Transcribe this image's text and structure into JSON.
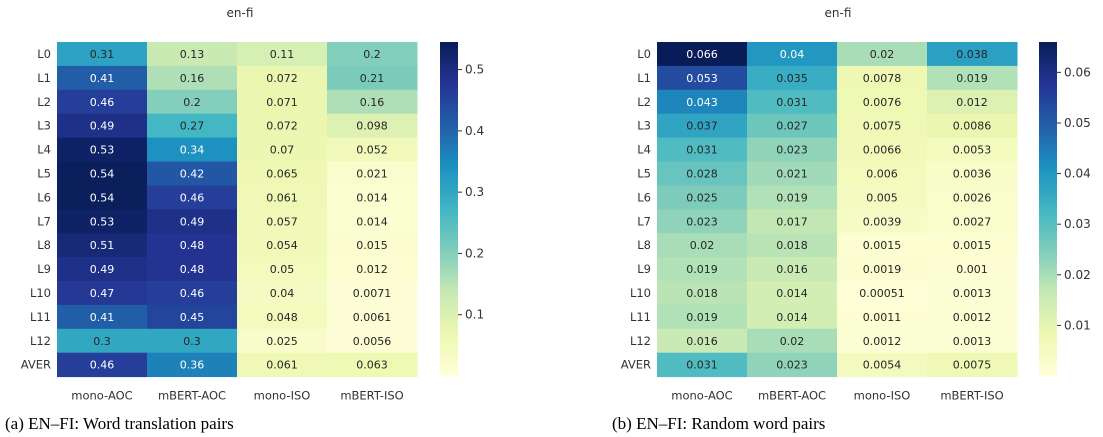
{
  "chart_data": [
    {
      "type": "heatmap",
      "title": "en-fi",
      "caption": "(a) EN–FI: Word translation pairs",
      "x_categories": [
        "mono-AOC",
        "mBERT-AOC",
        "mono-ISO",
        "mBERT-ISO"
      ],
      "y_categories": [
        "L0",
        "L1",
        "L2",
        "L3",
        "L4",
        "L5",
        "L6",
        "L7",
        "L8",
        "L9",
        "L10",
        "L11",
        "L12",
        "AVER"
      ],
      "value_labels": [
        [
          "0.31",
          "0.13",
          "0.11",
          "0.2"
        ],
        [
          "0.41",
          "0.16",
          "0.072",
          "0.21"
        ],
        [
          "0.46",
          "0.2",
          "0.071",
          "0.16"
        ],
        [
          "0.49",
          "0.27",
          "0.072",
          "0.098"
        ],
        [
          "0.53",
          "0.34",
          "0.07",
          "0.052"
        ],
        [
          "0.54",
          "0.42",
          "0.065",
          "0.021"
        ],
        [
          "0.54",
          "0.46",
          "0.061",
          "0.014"
        ],
        [
          "0.53",
          "0.49",
          "0.057",
          "0.014"
        ],
        [
          "0.51",
          "0.48",
          "0.054",
          "0.015"
        ],
        [
          "0.49",
          "0.48",
          "0.05",
          "0.012"
        ],
        [
          "0.47",
          "0.46",
          "0.04",
          "0.0071"
        ],
        [
          "0.41",
          "0.45",
          "0.048",
          "0.0061"
        ],
        [
          "0.3",
          "0.3",
          "0.025",
          "0.0056"
        ],
        [
          "0.46",
          "0.36",
          "0.061",
          "0.063"
        ]
      ],
      "colorbar": {
        "vmin": 0.0,
        "vmax": 0.545,
        "ticks": [
          "0.1",
          "0.2",
          "0.3",
          "0.4",
          "0.5"
        ]
      },
      "colormap": "YlGnBu"
    },
    {
      "type": "heatmap",
      "title": "en-fi",
      "caption": "(b) EN–FI: Random word pairs",
      "x_categories": [
        "mono-AOC",
        "mBERT-AOC",
        "mono-ISO",
        "mBERT-ISO"
      ],
      "y_categories": [
        "L0",
        "L1",
        "L2",
        "L3",
        "L4",
        "L5",
        "L6",
        "L7",
        "L8",
        "L9",
        "L10",
        "L11",
        "L12",
        "AVER"
      ],
      "value_labels": [
        [
          "0.066",
          "0.04",
          "0.02",
          "0.038"
        ],
        [
          "0.053",
          "0.035",
          "0.0078",
          "0.019"
        ],
        [
          "0.043",
          "0.031",
          "0.0076",
          "0.012"
        ],
        [
          "0.037",
          "0.027",
          "0.0075",
          "0.0086"
        ],
        [
          "0.031",
          "0.023",
          "0.0066",
          "0.0053"
        ],
        [
          "0.028",
          "0.021",
          "0.006",
          "0.0036"
        ],
        [
          "0.025",
          "0.019",
          "0.005",
          "0.0026"
        ],
        [
          "0.023",
          "0.017",
          "0.0039",
          "0.0027"
        ],
        [
          "0.02",
          "0.018",
          "0.0015",
          "0.0015"
        ],
        [
          "0.019",
          "0.016",
          "0.0019",
          "0.001"
        ],
        [
          "0.018",
          "0.014",
          "0.00051",
          "0.0013"
        ],
        [
          "0.019",
          "0.014",
          "0.0011",
          "0.0012"
        ],
        [
          "0.016",
          "0.02",
          "0.0012",
          "0.0013"
        ],
        [
          "0.031",
          "0.023",
          "0.0054",
          "0.0075"
        ]
      ],
      "colorbar": {
        "vmin": 0.0,
        "vmax": 0.066,
        "ticks": [
          "0.01",
          "0.02",
          "0.03",
          "0.04",
          "0.05",
          "0.06"
        ]
      },
      "colormap": "YlGnBu"
    }
  ]
}
